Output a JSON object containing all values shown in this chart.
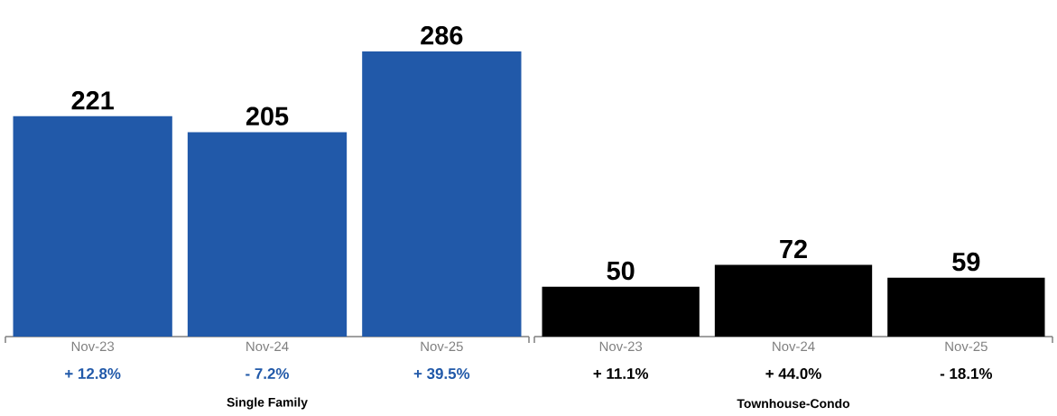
{
  "chart_data": [
    {
      "type": "bar",
      "xlabel": "Single Family",
      "categories": [
        "Nov-23",
        "Nov-24",
        "Nov-25"
      ],
      "values": [
        221,
        205,
        286
      ],
      "color": "#2159a9",
      "data_labels": true,
      "annotations": [
        "+ 12.8%",
        "- 7.2%",
        "+ 39.5%"
      ]
    },
    {
      "type": "bar",
      "xlabel": "Townhouse-Condo",
      "categories": [
        "Nov-23",
        "Nov-24",
        "Nov-25"
      ],
      "values": [
        50,
        72,
        59
      ],
      "color": "#000000",
      "data_labels": true,
      "annotations": [
        "+ 11.1%",
        "+ 44.0%",
        "- 18.1%"
      ]
    }
  ]
}
